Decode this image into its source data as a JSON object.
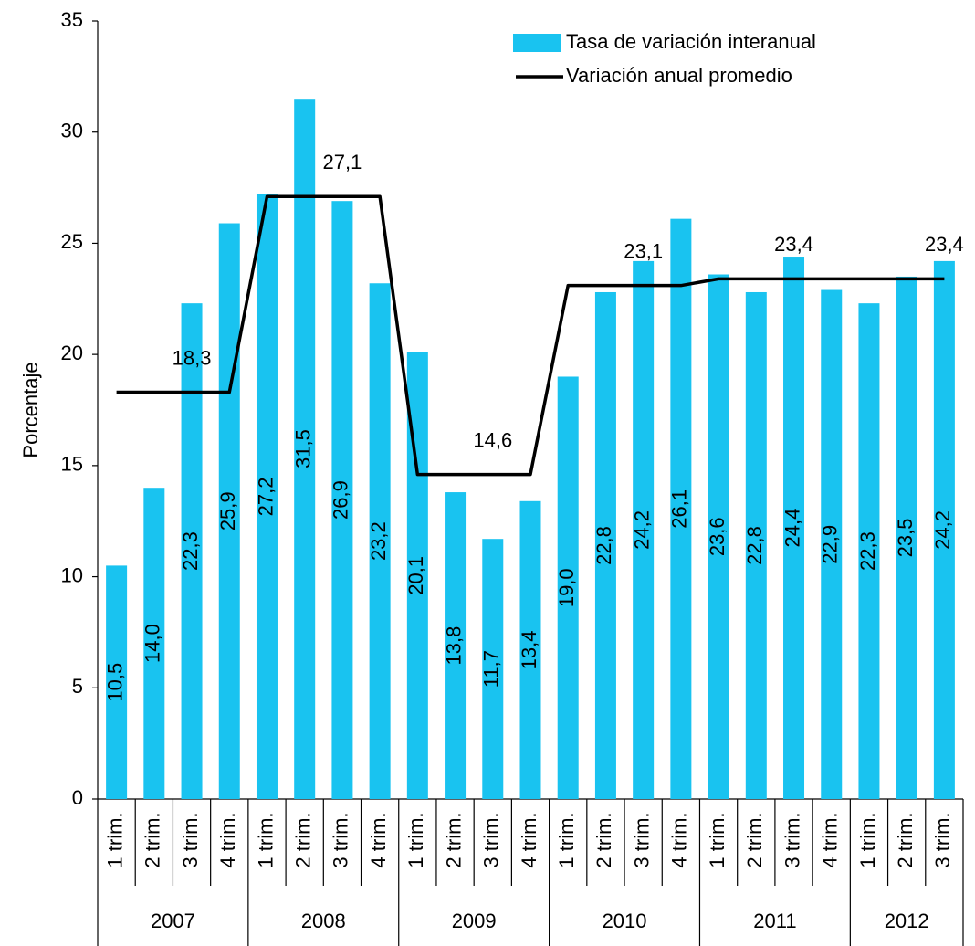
{
  "chart_data": {
    "type": "bar-line",
    "y_label": "Porcentaje",
    "groups": [
      {
        "label": "2007",
        "categories": [
          "1 trim.",
          "2 trim.",
          "3 trim.",
          "4 trim."
        ]
      },
      {
        "label": "2008",
        "categories": [
          "1 trim.",
          "2 trim.",
          "3 trim.",
          "4 trim."
        ]
      },
      {
        "label": "2009",
        "categories": [
          "1 trim.",
          "2 trim.",
          "3 trim.",
          "4 trim."
        ]
      },
      {
        "label": "2010",
        "categories": [
          "1 trim.",
          "2 trim.",
          "3 trim.",
          "4 trim."
        ]
      },
      {
        "label": "2011",
        "categories": [
          "1 trim.",
          "2 trim.",
          "3 trim.",
          "4 trim."
        ]
      },
      {
        "label": "2012",
        "categories": [
          "1 trim.",
          "2 trim.",
          "3 trim."
        ]
      }
    ],
    "series": [
      {
        "name": "Tasa de variación interanual",
        "type": "bar",
        "color": "#19c3f0",
        "values": [
          10.5,
          14.0,
          22.3,
          25.9,
          27.2,
          31.5,
          26.9,
          23.2,
          20.1,
          13.8,
          11.7,
          13.4,
          19.0,
          22.8,
          24.2,
          26.1,
          23.6,
          22.8,
          24.4,
          22.9,
          22.3,
          23.5,
          24.2
        ],
        "value_labels": [
          "10,5",
          "14,0",
          "22,3",
          "25,9",
          "27,2",
          "31,5",
          "26,9",
          "23,2",
          "20,1",
          "13,8",
          "11,7",
          "13,4",
          "19,0",
          "22,8",
          "24,2",
          "26,1",
          "23,6",
          "22,8",
          "24,4",
          "22,9",
          "22,3",
          "23,5",
          "24,2"
        ]
      },
      {
        "name": "Variación anual promedio",
        "type": "line",
        "color": "#000000",
        "values": [
          18.3,
          18.3,
          18.3,
          18.3,
          27.1,
          27.1,
          27.1,
          27.1,
          14.6,
          14.6,
          14.6,
          14.6,
          23.1,
          23.1,
          23.1,
          23.1,
          23.4,
          23.4,
          23.4,
          23.4,
          23.4,
          23.4,
          23.4
        ],
        "value_labels": [
          null,
          null,
          "18,3",
          null,
          null,
          null,
          "27,1",
          null,
          null,
          null,
          "14,6",
          null,
          null,
          null,
          "23,1",
          null,
          null,
          null,
          "23,4",
          null,
          null,
          null,
          "23,4"
        ]
      }
    ],
    "ylim": [
      0,
      35
    ],
    "yticks": [
      0,
      5,
      10,
      15,
      20,
      25,
      30,
      35
    ],
    "legend": "top-right"
  }
}
